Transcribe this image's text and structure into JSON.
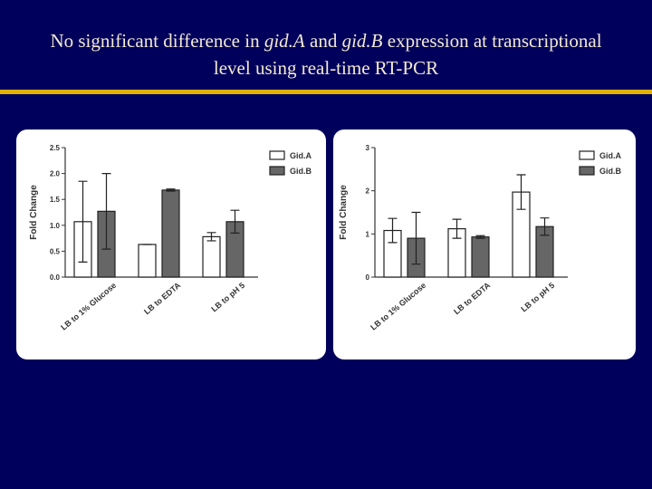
{
  "title_parts": [
    "No significant difference in ",
    "gid.A",
    " and ",
    "gid.B",
    " expression at transcriptional level using real-time RT-PCR"
  ],
  "chart_data": [
    {
      "type": "bar",
      "y_label": "Fold Change",
      "categories": [
        "LB to 1% Glucose",
        "LB to EDTA",
        "LB to pH 5"
      ],
      "series": [
        {
          "name": "Gid.A",
          "color": "#ffffff",
          "values": [
            1.07,
            0.63,
            0.78
          ],
          "errors": [
            0.78,
            0,
            0.08
          ]
        },
        {
          "name": "Gid.B",
          "color": "#666666",
          "values": [
            1.27,
            1.68,
            1.07
          ],
          "errors": [
            0.73,
            0.02,
            0.22
          ]
        }
      ],
      "ylim": [
        0,
        2.5
      ],
      "yticks": [
        {
          "value": 0,
          "label": "0.0"
        },
        0.5,
        {
          "value": 1,
          "label": "1.0"
        },
        1.5,
        {
          "value": 2,
          "label": "2.0"
        },
        2.5
      ]
    },
    {
      "type": "bar",
      "y_label": "Fold Change",
      "categories": [
        "LB to 1% Glucose",
        "LB to EDTA",
        "LB to pH 5"
      ],
      "series": [
        {
          "name": "Gid.A",
          "color": "#ffffff",
          "values": [
            1.08,
            1.12,
            1.97
          ],
          "errors": [
            0.28,
            0.22,
            0.4
          ]
        },
        {
          "name": "Gid.B",
          "color": "#666666",
          "values": [
            0.9,
            0.93,
            1.17
          ],
          "errors": [
            0.6,
            0.03,
            0.2
          ]
        }
      ],
      "ylim": [
        0,
        3
      ],
      "yticks": [
        0,
        1,
        2,
        3
      ]
    }
  ]
}
